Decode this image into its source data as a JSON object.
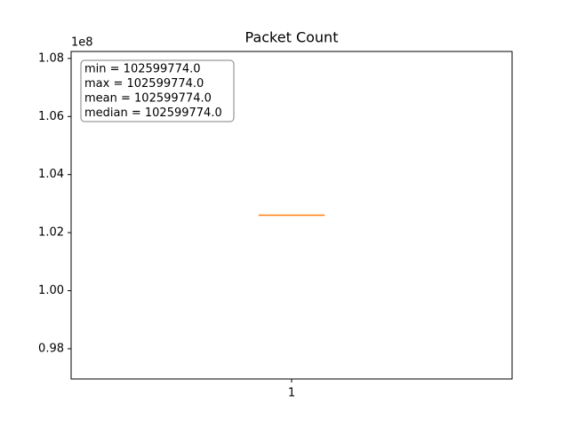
{
  "chart_data": {
    "type": "box",
    "title": "Packet Count",
    "categories": [
      "1"
    ],
    "boxes": [
      {
        "min": 102599774,
        "q1": 102599774,
        "median": 102599774,
        "q3": 102599774,
        "max": 102599774
      }
    ],
    "box_color": "#000000",
    "median_color": "#ff7f0e",
    "ylim": [
      96960000,
      108240000
    ],
    "yticks": [
      {
        "value": 98000000,
        "label": "0.98"
      },
      {
        "value": 100000000,
        "label": "1.00"
      },
      {
        "value": 102000000,
        "label": "1.02"
      },
      {
        "value": 104000000,
        "label": "1.04"
      },
      {
        "value": 106000000,
        "label": "1.06"
      },
      {
        "value": 108000000,
        "label": "1.08"
      }
    ],
    "y_offset_label": "1e8",
    "annotation": [
      "min = 102599774.0",
      "max = 102599774.0",
      "mean = 102599774.0",
      "median = 102599774.0"
    ],
    "grid": false
  }
}
